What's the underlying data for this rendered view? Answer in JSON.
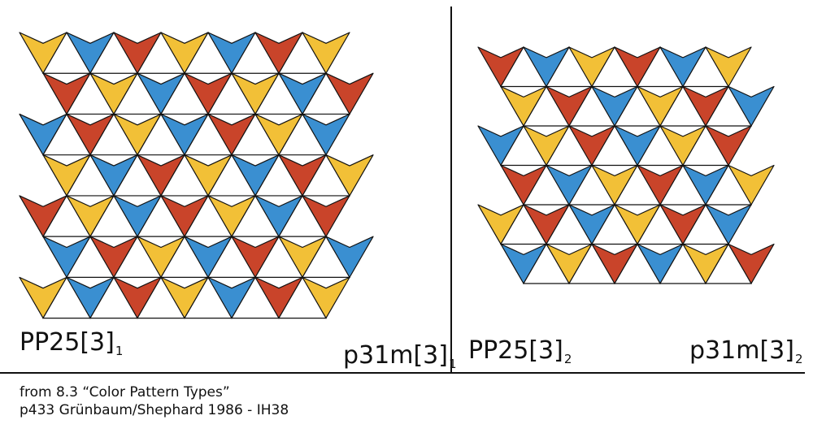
{
  "colors": {
    "yellow": "#f2c037",
    "red": "#c9442a",
    "blue": "#3a8fd1",
    "stroke": "#111111"
  },
  "panels": [
    {
      "label_left": "PP25[3]",
      "label_left_sub": "1",
      "label_right": "p31m[3]",
      "label_right_sub": "1",
      "pattern": [
        "yellow",
        "blue",
        "red"
      ]
    },
    {
      "label_left": "PP25[3]",
      "label_left_sub": "2",
      "label_right": "p31m[3]",
      "label_right_sub": "2",
      "pattern": [
        "red",
        "blue",
        "yellow"
      ]
    }
  ],
  "caption": {
    "line1": "from 8.3 “Color Pattern Types”",
    "line2": "p433 Grünbaum/Shephard 1986 - IH38"
  }
}
